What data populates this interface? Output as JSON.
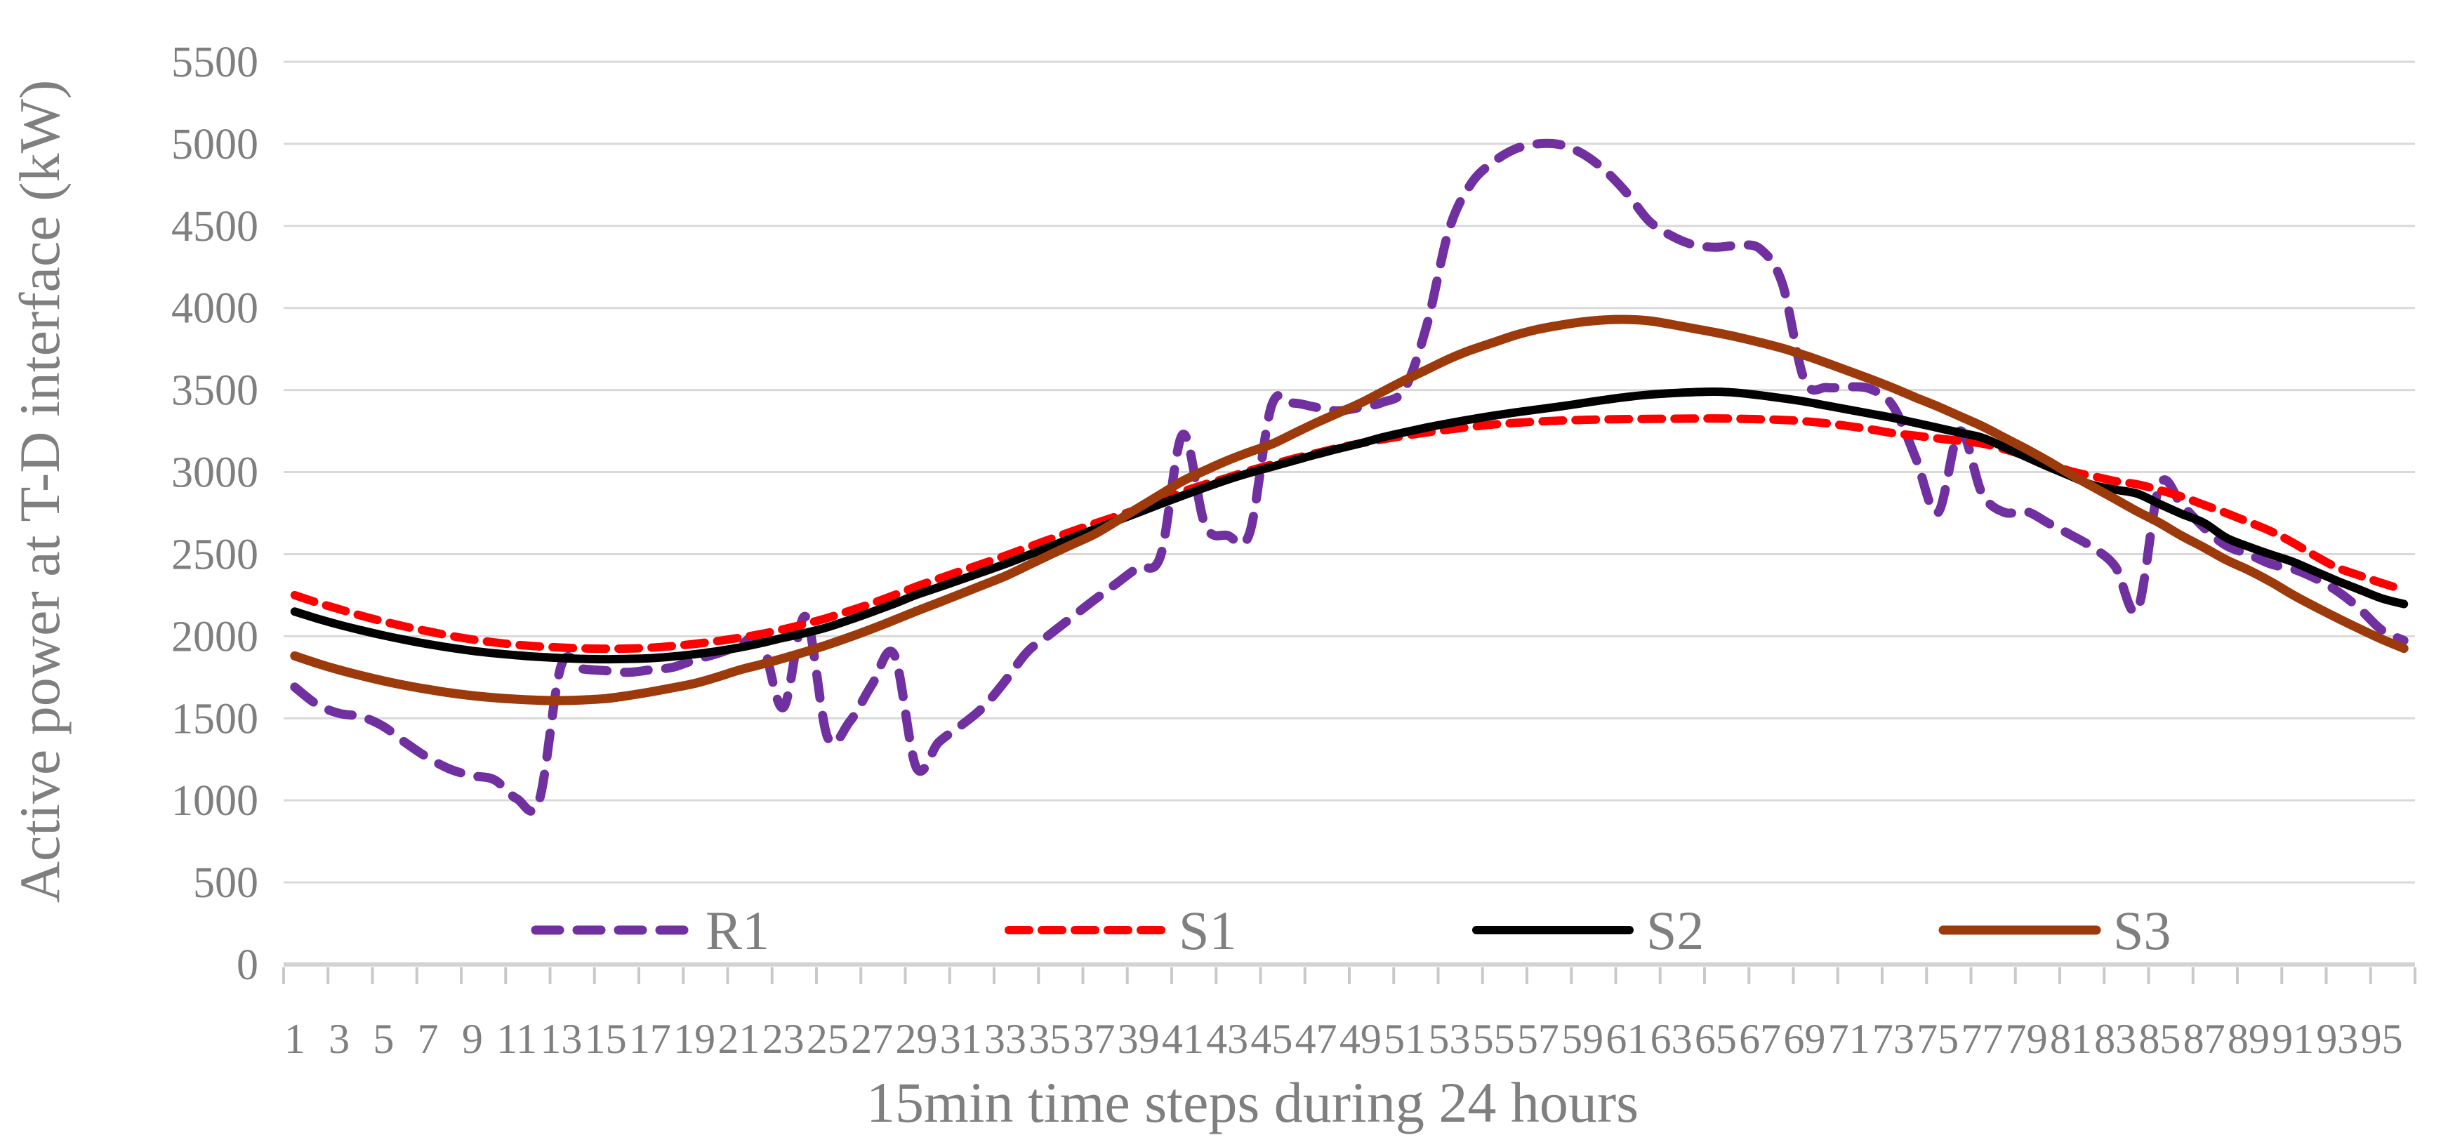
{
  "figure": {
    "background": "#ffffff",
    "text_color": "#7f7f7f",
    "grid_color": "#d9d9d9",
    "axis_line_color": "#d3d3d3",
    "tick_color": "#c9c9c9"
  },
  "chart_data": {
    "type": "line",
    "title": "",
    "xlabel": "15min time steps during 24 hours",
    "ylabel": "Active power at T-D interface (kW)",
    "ylim": [
      0,
      5500
    ],
    "y_ticks": [
      0,
      500,
      1000,
      1500,
      2000,
      2500,
      3000,
      3500,
      4000,
      4500,
      5000,
      5500
    ],
    "n_points": 96,
    "x_tick_labels": [
      "1",
      "3",
      "5",
      "7",
      "9",
      "11",
      "13",
      "15",
      "17",
      "19",
      "21",
      "23",
      "25",
      "27",
      "29",
      "31",
      "33",
      "35",
      "37",
      "39",
      "41",
      "43",
      "45",
      "47",
      "49",
      "51",
      "53",
      "55",
      "57",
      "59",
      "61",
      "63",
      "65",
      "67",
      "69",
      "71",
      "73",
      "75",
      "77",
      "79",
      "81",
      "83",
      "85",
      "87",
      "89",
      "91",
      "93",
      "95"
    ],
    "grid": true,
    "legend_position": "bottom-inside",
    "series": [
      {
        "name": "R1",
        "color": "#7030A0",
        "line_style": "dashed",
        "values": [
          1690,
          1585,
          1530,
          1510,
          1450,
          1350,
          1260,
          1190,
          1150,
          1125,
          1010,
          995,
          1820,
          1800,
          1790,
          1780,
          1795,
          1810,
          1855,
          1893,
          1940,
          1982,
          1565,
          2120,
          1385,
          1480,
          1705,
          1888,
          1200,
          1353,
          1455,
          1567,
          1727,
          1905,
          2010,
          2115,
          2220,
          2320,
          2420,
          2490,
          3230,
          2680,
          2615,
          2625,
          3405,
          3420,
          3395,
          3373,
          3395,
          3425,
          3510,
          3900,
          4480,
          4760,
          4890,
          4970,
          5000,
          4995,
          4940,
          4840,
          4700,
          4530,
          4440,
          4385,
          4370,
          4380,
          4360,
          4150,
          3560,
          3515,
          3520,
          3505,
          3400,
          3090,
          2752,
          3250,
          2870,
          2755,
          2760,
          2688,
          2617,
          2539,
          2424,
          2162,
          2920,
          2800,
          2660,
          2552,
          2500,
          2440,
          2410,
          2353,
          2275,
          2168,
          2038,
          1974
        ]
      },
      {
        "name": "S1",
        "color": "#FF0000",
        "line_style": "dashed",
        "values": [
          2250,
          2205,
          2165,
          2125,
          2090,
          2058,
          2030,
          2003,
          1980,
          1962,
          1948,
          1938,
          1931,
          1926,
          1924,
          1925,
          1930,
          1940,
          1953,
          1970,
          1990,
          2013,
          2042,
          2075,
          2112,
          2155,
          2200,
          2250,
          2303,
          2350,
          2397,
          2443,
          2490,
          2540,
          2590,
          2638,
          2685,
          2730,
          2775,
          2818,
          2880,
          2925,
          2965,
          3008,
          3045,
          3082,
          3115,
          3147,
          3175,
          3200,
          3222,
          3242,
          3260,
          3276,
          3290,
          3300,
          3308,
          3314,
          3318,
          3321,
          3323,
          3324,
          3325,
          3326,
          3327,
          3325,
          3322,
          3318,
          3310,
          3297,
          3280,
          3260,
          3237,
          3222,
          3205,
          3190,
          3174,
          3140,
          3098,
          3052,
          3005,
          2975,
          2945,
          2925,
          2890,
          2850,
          2800,
          2750,
          2696,
          2640,
          2570,
          2490,
          2418,
          2370,
          2324,
          2282
        ]
      },
      {
        "name": "S2",
        "color": "#000000",
        "line_style": "solid",
        "values": [
          2150,
          2108,
          2070,
          2036,
          2005,
          1977,
          1952,
          1930,
          1911,
          1896,
          1884,
          1874,
          1867,
          1862,
          1860,
          1862,
          1866,
          1876,
          1890,
          1908,
          1930,
          1958,
          1990,
          2020,
          2055,
          2100,
          2148,
          2198,
          2252,
          2298,
          2345,
          2392,
          2440,
          2492,
          2545,
          2598,
          2650,
          2702,
          2754,
          2806,
          2857,
          2906,
          2953,
          2995,
          3032,
          3070,
          3107,
          3142,
          3175,
          3212,
          3243,
          3272,
          3298,
          3322,
          3344,
          3364,
          3382,
          3400,
          3420,
          3440,
          3458,
          3472,
          3481,
          3487,
          3490,
          3483,
          3468,
          3450,
          3430,
          3405,
          3380,
          3355,
          3330,
          3300,
          3270,
          3240,
          3210,
          3152,
          3092,
          3032,
          2975,
          2920,
          2893,
          2868,
          2805,
          2745,
          2690,
          2600,
          2546,
          2498,
          2453,
          2395,
          2337,
          2284,
          2231,
          2196
        ]
      },
      {
        "name": "S3",
        "color": "#9C3A0C",
        "line_style": "solid",
        "values": [
          1880,
          1835,
          1795,
          1760,
          1728,
          1700,
          1676,
          1655,
          1638,
          1625,
          1616,
          1610,
          1608,
          1612,
          1620,
          1638,
          1660,
          1685,
          1712,
          1750,
          1793,
          1828,
          1865,
          1905,
          1948,
          1995,
          2045,
          2098,
          2153,
          2205,
          2258,
          2312,
          2366,
          2430,
          2495,
          2558,
          2620,
          2700,
          2782,
          2864,
          2946,
          3010,
          3070,
          3122,
          3170,
          3235,
          3300,
          3360,
          3420,
          3490,
          3560,
          3625,
          3690,
          3745,
          3790,
          3835,
          3870,
          3895,
          3915,
          3927,
          3930,
          3922,
          3900,
          3875,
          3850,
          3822,
          3790,
          3755,
          3712,
          3665,
          3615,
          3565,
          3512,
          3455,
          3400,
          3340,
          3280,
          3210,
          3140,
          3065,
          2985,
          2910,
          2835,
          2760,
          2690,
          2611,
          2540,
          2465,
          2403,
          2332,
          2252,
          2180,
          2111,
          2045,
          1982,
          1926
        ]
      }
    ],
    "legend": [
      {
        "label": "R1"
      },
      {
        "label": "S1"
      },
      {
        "label": "S2"
      },
      {
        "label": "S3"
      }
    ]
  }
}
